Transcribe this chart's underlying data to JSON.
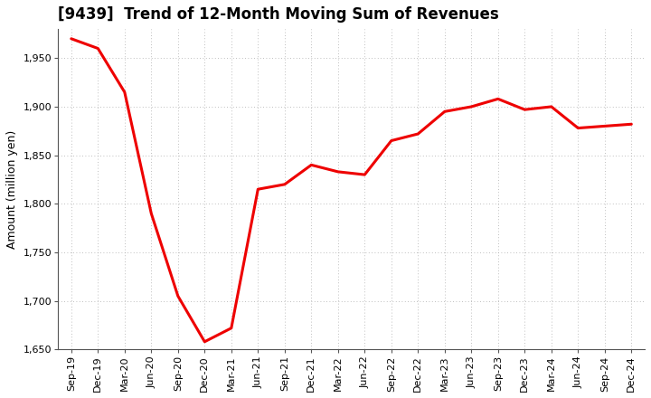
{
  "title": "[9439]  Trend of 12-Month Moving Sum of Revenues",
  "ylabel": "Amount (million yen)",
  "line_color": "#EE0000",
  "line_width": 2.2,
  "background_color": "#FFFFFF",
  "plot_bg_color": "#FFFFFF",
  "grid_color": "#AAAAAA",
  "ylim": [
    1650,
    1980
  ],
  "yticks": [
    1650,
    1700,
    1750,
    1800,
    1850,
    1900,
    1950
  ],
  "x_labels": [
    "Sep-19",
    "Dec-19",
    "Mar-20",
    "Jun-20",
    "Sep-20",
    "Dec-20",
    "Mar-21",
    "Jun-21",
    "Sep-21",
    "Dec-21",
    "Mar-22",
    "Jun-22",
    "Sep-22",
    "Dec-22",
    "Mar-23",
    "Jun-23",
    "Sep-23",
    "Dec-23",
    "Mar-24",
    "Jun-24",
    "Sep-24",
    "Dec-24"
  ],
  "data_values": [
    1970,
    1960,
    1915,
    1790,
    1705,
    1658,
    1672,
    1815,
    1820,
    1840,
    1833,
    1830,
    1865,
    1872,
    1895,
    1900,
    1908,
    1897,
    1900,
    1878,
    1880,
    1882
  ],
  "title_fontsize": 12,
  "ylabel_fontsize": 9,
  "tick_fontsize": 8
}
